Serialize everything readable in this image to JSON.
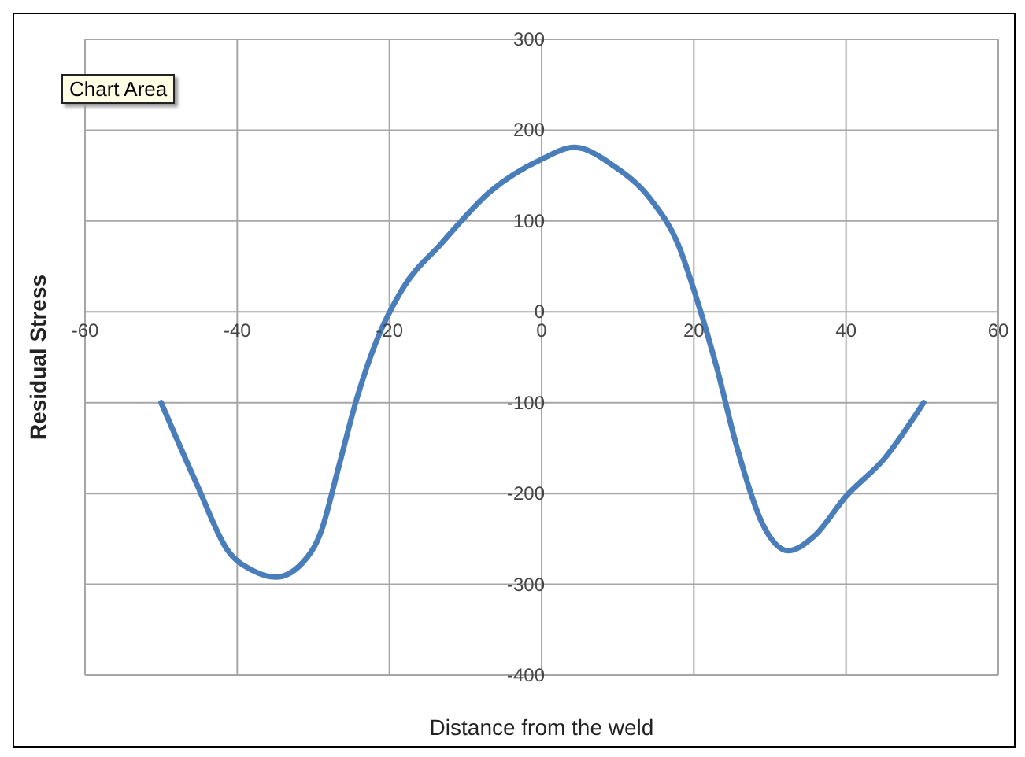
{
  "chart_data": {
    "type": "line",
    "xlabel": "Distance from the weld",
    "ylabel": "Residual Stress",
    "annotations": [
      "Chart Area"
    ],
    "x": [
      -50,
      -45.3,
      -41.3,
      -37.9,
      -34.9,
      -31.5,
      -28.9,
      -26.8,
      -24.3,
      -21.7,
      -18.3,
      -13.2,
      -6.8,
      0,
      4.3,
      9.4,
      14.5,
      17.9,
      20.5,
      23,
      25.6,
      29,
      32.4,
      35.8,
      40,
      45.1,
      50.2
    ],
    "series": [
      {
        "color": "#4a7ebb",
        "values": [
          -100,
          -190,
          -262,
          -285,
          -292,
          -277,
          -240,
          -175,
          -96,
          -32,
          25,
          75,
          132,
          168,
          181,
          161,
          122,
          75,
          11,
          -61,
          -147,
          -233,
          -263,
          -247,
          -203,
          -161,
          -100
        ]
      }
    ],
    "xlim": [
      -60,
      60
    ],
    "xticks": [
      -60,
      -40,
      -20,
      0,
      20,
      40,
      60
    ],
    "ylim": [
      -400,
      300
    ],
    "yticks": [
      -400,
      -300,
      -200,
      -100,
      0,
      100,
      200,
      300
    ],
    "grid": true,
    "marker": "none",
    "line_style": "solid"
  }
}
